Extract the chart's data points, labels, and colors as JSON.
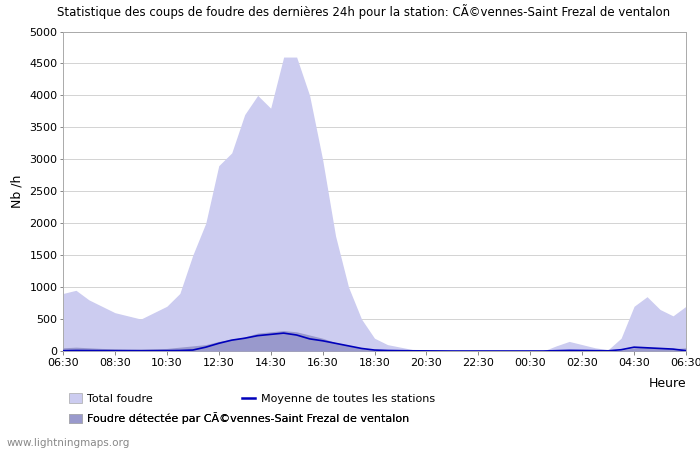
{
  "title": "Statistique des coups de foudre des dernières 24h pour la station: CÃ©vennes-Saint Frezal de ventalon",
  "ylabel": "Nb /h",
  "heure_label": "Heure",
  "watermark": "www.lightningmaps.org",
  "x_ticks": [
    "06:30",
    "08:30",
    "10:30",
    "12:30",
    "14:30",
    "16:30",
    "18:30",
    "20:30",
    "22:30",
    "00:30",
    "02:30",
    "04:30",
    "06:30"
  ],
  "ylim": [
    0,
    5000
  ],
  "yticks": [
    0,
    500,
    1000,
    1500,
    2000,
    2500,
    3000,
    3500,
    4000,
    4500,
    5000
  ],
  "background_color": "#ffffff",
  "plot_background_color": "#ffffff",
  "grid_color": "#cccccc",
  "total_foudre_color": "#ccccf0",
  "detected_foudre_color": "#9999cc",
  "moyenne_color": "#0000bb",
  "moyenne_linewidth": 1.2,
  "x_values": [
    0,
    1,
    2,
    3,
    4,
    5,
    6,
    7,
    8,
    9,
    10,
    11,
    12,
    13,
    14,
    15,
    16,
    17,
    18,
    19,
    20,
    21,
    22,
    23,
    24,
    25,
    26,
    27,
    28,
    29,
    30,
    31,
    32,
    33,
    34,
    35,
    36,
    37,
    38,
    39,
    40,
    41,
    42,
    43,
    44,
    45,
    46,
    47,
    48
  ],
  "total_foudre": [
    900,
    950,
    800,
    700,
    600,
    550,
    500,
    600,
    700,
    900,
    1500,
    2000,
    2900,
    3100,
    3700,
    4000,
    3800,
    4600,
    4600,
    4000,
    3000,
    1800,
    1000,
    500,
    200,
    100,
    60,
    20,
    10,
    5,
    0,
    0,
    0,
    0,
    0,
    0,
    0,
    0,
    80,
    150,
    100,
    50,
    20,
    200,
    700,
    850,
    650,
    550,
    700
  ],
  "detected_foudre": [
    50,
    60,
    50,
    40,
    35,
    30,
    30,
    35,
    40,
    60,
    80,
    100,
    150,
    180,
    220,
    280,
    300,
    320,
    300,
    250,
    200,
    130,
    80,
    40,
    15,
    8,
    4,
    2,
    1,
    0,
    0,
    0,
    0,
    0,
    0,
    0,
    0,
    0,
    5,
    8,
    5,
    3,
    2,
    15,
    50,
    60,
    45,
    35,
    50
  ],
  "moyenne": [
    5,
    8,
    7,
    6,
    5,
    5,
    4,
    5,
    6,
    8,
    15,
    60,
    120,
    170,
    200,
    240,
    260,
    280,
    250,
    190,
    160,
    120,
    80,
    40,
    15,
    8,
    5,
    3,
    2,
    1,
    0,
    0,
    0,
    0,
    0,
    0,
    0,
    0,
    5,
    10,
    8,
    5,
    3,
    20,
    60,
    50,
    40,
    30,
    5
  ],
  "legend_total": "Total foudre",
  "legend_detected": "Foudre détectée par CÃ©vennes-Saint Frezal de ventalon",
  "legend_moyenne": "Moyenne de toutes les stations"
}
